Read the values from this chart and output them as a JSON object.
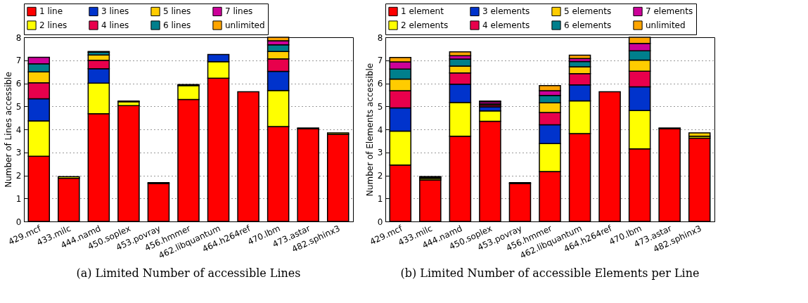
{
  "chart_data": [
    {
      "type": "bar",
      "stacked": true,
      "ylabel": "Number of Lines accessible",
      "categories": [
        "429.mcf",
        "433.milc",
        "444.namd",
        "450.soplex",
        "453.povray",
        "456.hmmer",
        "462.libquantum",
        "464.h264ref",
        "470.lbm",
        "473.astar",
        "482.sphinx3"
      ],
      "ylim": [
        0,
        8
      ],
      "yticks": [
        0,
        1,
        2,
        3,
        4,
        5,
        6,
        7,
        8
      ],
      "grid": "y",
      "legend": "top",
      "annotations": [
        "(a) Limited Number of accessible Lines"
      ],
      "series": [
        {
          "name": "1 line",
          "color": "#ff0000",
          "values": [
            2.83,
            1.88,
            4.68,
            5.03,
            1.65,
            5.3,
            6.22,
            5.63,
            4.12,
            4.03,
            3.79
          ]
        },
        {
          "name": "2 lines",
          "color": "#ffff00",
          "values": [
            1.54,
            0.07,
            1.33,
            0.17,
            0.04,
            0.6,
            0.72,
            null,
            1.57,
            0.03,
            0.06
          ]
        },
        {
          "name": "3 lines",
          "color": "#0033cc",
          "values": [
            0.96,
            null,
            0.62,
            0.03,
            null,
            0.05,
            0.31,
            null,
            0.83,
            null,
            null
          ]
        },
        {
          "name": "4 lines",
          "color": "#e8004c",
          "values": [
            0.69,
            null,
            0.37,
            null,
            null,
            null,
            null,
            null,
            0.54,
            null,
            null
          ]
        },
        {
          "name": "5 lines",
          "color": "#ffcc00",
          "values": [
            0.48,
            null,
            0.23,
            null,
            null,
            null,
            null,
            null,
            0.32,
            null,
            null
          ]
        },
        {
          "name": "6 lines",
          "color": "#007f8c",
          "values": [
            0.35,
            null,
            0.12,
            null,
            null,
            null,
            null,
            null,
            0.29,
            null,
            null
          ]
        },
        {
          "name": "7 lines",
          "color": "#cc0099",
          "values": [
            0.28,
            null,
            0.03,
            null,
            null,
            null,
            null,
            null,
            0.18,
            null,
            null
          ]
        },
        {
          "name": "unlimited",
          "color": "#ffa500",
          "values": [
            null,
            null,
            null,
            null,
            null,
            null,
            null,
            null,
            0.15,
            null,
            null
          ]
        }
      ]
    },
    {
      "type": "bar",
      "stacked": true,
      "ylabel": "Number of Elements accessible",
      "categories": [
        "429.mcf",
        "433.milc",
        "444.namd",
        "450.soplex",
        "453.povray",
        "456.hmmer",
        "462.libquantum",
        "464.h264ref",
        "470.lbm",
        "473.astar",
        "482.sphinx3"
      ],
      "ylim": [
        0,
        8
      ],
      "yticks": [
        0,
        1,
        2,
        3,
        4,
        5,
        6,
        7,
        8
      ],
      "grid": "y",
      "legend": "top",
      "annotations": [
        "(b) Limited Number of accessible Elements per Line"
      ],
      "series": [
        {
          "name": "1 element",
          "color": "#ff0000",
          "values": [
            2.45,
            1.8,
            3.7,
            4.35,
            1.65,
            2.17,
            3.82,
            5.63,
            3.15,
            4.03,
            3.62
          ]
        },
        {
          "name": "2 elements",
          "color": "#ffff00",
          "values": [
            1.47,
            0.07,
            1.47,
            0.45,
            0.04,
            1.21,
            1.42,
            null,
            1.67,
            0.03,
            0.08
          ]
        },
        {
          "name": "3 elements",
          "color": "#0033cc",
          "values": [
            1.01,
            0.05,
            0.79,
            0.18,
            null,
            0.82,
            0.69,
            null,
            1.03,
            null,
            null
          ]
        },
        {
          "name": "4 elements",
          "color": "#e8004c",
          "values": [
            0.75,
            0.03,
            0.49,
            0.07,
            null,
            0.53,
            0.49,
            null,
            0.68,
            null,
            null
          ]
        },
        {
          "name": "5 elements",
          "color": "#ffcc00",
          "values": [
            0.5,
            null,
            0.3,
            0.06,
            null,
            0.42,
            0.3,
            null,
            0.48,
            null,
            0.15
          ]
        },
        {
          "name": "6 elements",
          "color": "#007f8c",
          "values": [
            0.44,
            null,
            0.3,
            null,
            null,
            0.32,
            0.23,
            null,
            0.4,
            null,
            null
          ]
        },
        {
          "name": "7 elements",
          "color": "#cc0099",
          "values": [
            0.31,
            null,
            0.15,
            0.09,
            null,
            0.21,
            0.13,
            null,
            0.32,
            null,
            null
          ]
        },
        {
          "name": "unlimited",
          "color": "#ffa500",
          "values": [
            0.19,
            null,
            0.17,
            0.03,
            null,
            0.22,
            0.14,
            null,
            0.27,
            null,
            null
          ]
        }
      ]
    }
  ]
}
